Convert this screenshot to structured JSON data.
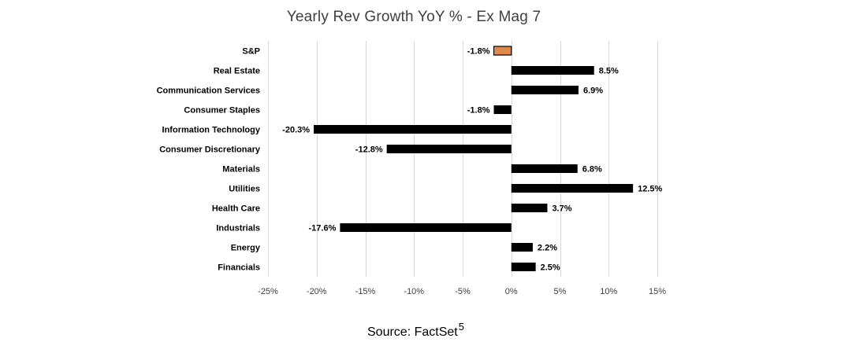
{
  "chart_data": {
    "type": "bar",
    "orientation": "horizontal",
    "title": "Yearly Rev Growth YoY % - Ex Mag 7",
    "categories": [
      "S&P",
      "Real Estate",
      "Communication Services",
      "Consumer Staples",
      "Information Technology",
      "Consumer Discretionary",
      "Materials",
      "Utilities",
      "Health Care",
      "Industrials",
      "Energy",
      "Financials"
    ],
    "values": [
      -1.8,
      8.5,
      6.9,
      -1.8,
      -20.3,
      -12.8,
      6.8,
      12.5,
      3.7,
      -17.6,
      2.2,
      2.5
    ],
    "data_labels": [
      "-1.8%",
      "8.5%",
      "6.9%",
      "-1.8%",
      "-20.3%",
      "-12.8%",
      "6.8%",
      "12.5%",
      "3.7%",
      "-17.6%",
      "2.2%",
      "2.5%"
    ],
    "highlight_index": 0,
    "xlim": [
      -25,
      15
    ],
    "x_ticks": [
      -25,
      -20,
      -15,
      -10,
      -5,
      0,
      5,
      10,
      15
    ],
    "x_tick_labels": [
      "-25%",
      "-20%",
      "-15%",
      "-10%",
      "-5%",
      "0%",
      "5%",
      "10%",
      "15%"
    ],
    "grid": true,
    "xlabel": "",
    "ylabel": "",
    "colors": {
      "bar": "#000000",
      "highlight": "#e0894c",
      "grid": "#d9d9d9"
    }
  },
  "source": {
    "text": "Source: FactSet",
    "footnote": "5"
  }
}
